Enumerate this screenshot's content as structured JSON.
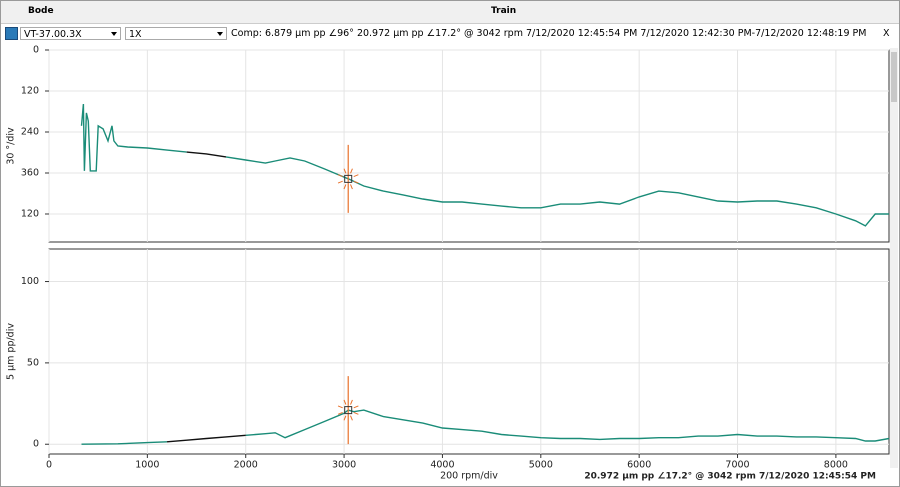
{
  "header": {
    "title": "Bode",
    "center": "Train"
  },
  "toolbar": {
    "point": "VT-37.00.3X",
    "order": "1X",
    "info": "Comp: 6.879 µm pp ∠96°   20.972 µm pp ∠17.2° @ 3042 rpm 7/12/2020 12:45:54 PM 7/12/2020 12:42:30 PM-7/12/2020 12:48:19 PM",
    "close": "X"
  },
  "status": "20.972 µm pp ∠17.2° @ 3042 rpm 7/12/2020 12:45:54 PM",
  "chart_data": [
    {
      "type": "line",
      "ylabel": "30 °/div",
      "grid": true,
      "xlim": [
        0,
        8540
      ],
      "xticks": [
        0,
        1000,
        2000,
        3000,
        4000,
        5000,
        6000,
        7000,
        8000
      ],
      "ylim": [
        562,
        0
      ],
      "yticks": [
        0,
        120,
        240,
        360,
        {
          "value": 480,
          "label": "120"
        }
      ],
      "x": [
        330,
        350,
        360,
        380,
        400,
        420,
        480,
        500,
        550,
        600,
        640,
        660,
        700,
        800,
        1000,
        1200,
        1400,
        1600,
        1800,
        2000,
        2200,
        2300,
        2450,
        2600,
        2800,
        3000,
        3042,
        3200,
        3400,
        3600,
        3800,
        4000,
        4200,
        4400,
        4600,
        4800,
        5000,
        5200,
        5400,
        5600,
        5800,
        6000,
        6200,
        6400,
        6600,
        6800,
        7000,
        7200,
        7400,
        7600,
        7800,
        8000,
        8200,
        8300,
        8400,
        8540
      ],
      "series": [
        {
          "color": "#1a8c78",
          "values": [
            222,
            158,
            354,
            184,
            208,
            354,
            354,
            222,
            231,
            266,
            222,
            266,
            281,
            284,
            287,
            293,
            299,
            null,
            313,
            322,
            331,
            325,
            316,
            325,
            348,
            372,
            377,
            398,
            413,
            424,
            436,
            445,
            445,
            451,
            457,
            462,
            462,
            451,
            451,
            445,
            451,
            430,
            413,
            418,
            430,
            442,
            445,
            442,
            442,
            451,
            462,
            480,
            500,
            515,
            480,
            480
          ]
        },
        {
          "color": "#111111",
          "values": [
            null,
            null,
            null,
            null,
            null,
            null,
            null,
            null,
            null,
            null,
            null,
            null,
            null,
            null,
            null,
            null,
            299,
            304,
            313,
            null,
            null,
            null,
            null,
            null,
            null,
            null,
            null,
            null,
            null,
            null,
            null,
            null,
            null,
            null,
            null,
            null,
            null,
            null,
            null,
            null,
            null,
            null,
            null,
            null,
            null,
            null,
            null,
            null,
            null,
            null,
            null,
            null,
            null,
            null,
            null,
            null
          ]
        }
      ],
      "cursor": {
        "x": 3042,
        "y": 377.2,
        "color": "#e8702a"
      }
    },
    {
      "type": "line",
      "ylabel": "5 µm pp/div",
      "xlabel": "200 rpm/div",
      "grid": true,
      "xlim": [
        0,
        8540
      ],
      "xticks": [
        0,
        1000,
        2000,
        3000,
        4000,
        5000,
        6000,
        7000,
        8000
      ],
      "ylim": [
        -6,
        120
      ],
      "yticks": [
        0,
        50,
        100
      ],
      "x": [
        330,
        700,
        1000,
        1200,
        1400,
        1600,
        1800,
        2000,
        2200,
        2300,
        2400,
        2600,
        2800,
        3000,
        3042,
        3100,
        3200,
        3400,
        3600,
        3800,
        4000,
        4200,
        4400,
        4600,
        4800,
        5000,
        5200,
        5400,
        5600,
        5800,
        6000,
        6200,
        6400,
        6600,
        6800,
        7000,
        7200,
        7400,
        7600,
        7800,
        8000,
        8200,
        8300,
        8400,
        8540
      ],
      "series": [
        {
          "color": "#1a8c78",
          "values": [
            0,
            0.3,
            1,
            1.5,
            null,
            null,
            null,
            5.5,
            6.5,
            7,
            4,
            9,
            14,
            19,
            21,
            20,
            21,
            17,
            15,
            13,
            10,
            9,
            8,
            6,
            5,
            4,
            3.5,
            3.5,
            3,
            3.5,
            3.5,
            4,
            4,
            5,
            5,
            6,
            5,
            5,
            4.5,
            4.5,
            4,
            3.5,
            2,
            2,
            3.5
          ]
        },
        {
          "color": "#111111",
          "values": [
            null,
            null,
            null,
            1.5,
            2.5,
            3.5,
            4.5,
            5.5,
            null,
            null,
            null,
            null,
            null,
            null,
            null,
            null,
            null,
            null,
            null,
            null,
            null,
            null,
            null,
            null,
            null,
            null,
            null,
            null,
            null,
            null,
            null,
            null,
            null,
            null,
            null,
            null,
            null,
            null,
            null,
            null,
            null,
            null,
            null,
            null,
            null
          ]
        }
      ],
      "cursor": {
        "x": 3042,
        "y": 20.972,
        "color": "#e8702a"
      }
    }
  ]
}
